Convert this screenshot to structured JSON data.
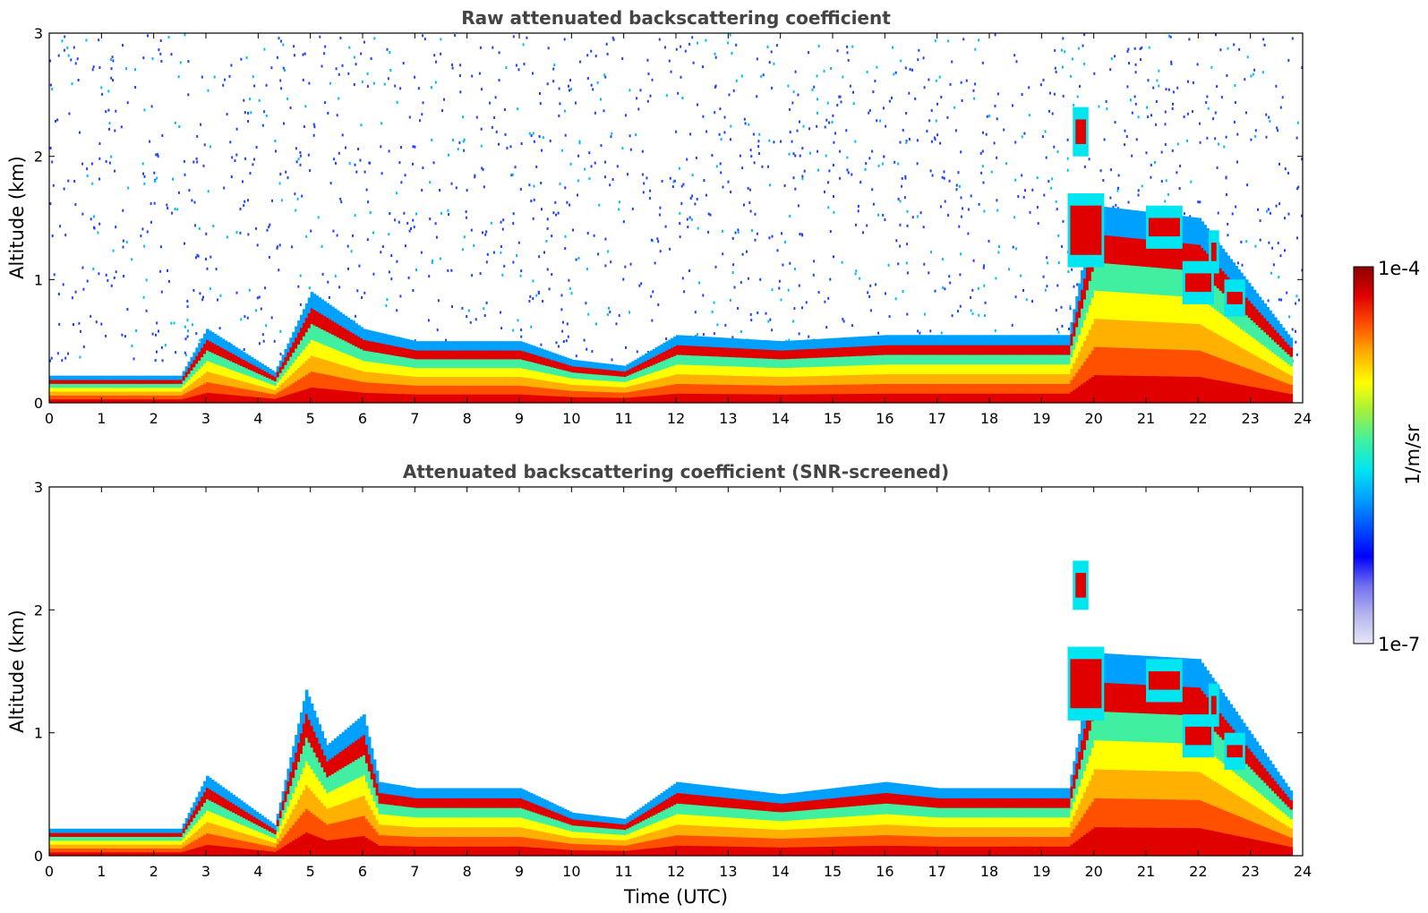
{
  "colors": {
    "axis": "#000000",
    "title": "#444444",
    "colormap": [
      "#e6e6f5",
      "#b4b4ee",
      "#7070ee",
      "#0000ff",
      "#0050ff",
      "#00a0ff",
      "#00e6f0",
      "#40f0a0",
      "#a0f040",
      "#ffff00",
      "#ffb000",
      "#ff5000",
      "#e00000",
      "#8b0000"
    ]
  },
  "colorbar": {
    "max_label": "1e-4",
    "min_label": "1e-7",
    "unit_label": "1/m/sr"
  },
  "chart_data": [
    {
      "type": "heatmap",
      "title": "Raw attenuated backscattering coefficient",
      "xlabel": "",
      "ylabel": "Altitude (km)",
      "xlim": [
        0,
        24
      ],
      "ylim": [
        0,
        3
      ],
      "x_ticks": [
        "0",
        "1",
        "2",
        "3",
        "4",
        "5",
        "6",
        "7",
        "8",
        "9",
        "10",
        "11",
        "12",
        "13",
        "14",
        "15",
        "16",
        "17",
        "18",
        "19",
        "20",
        "21",
        "22",
        "23",
        "24"
      ],
      "y_ticks": [
        "0",
        "1",
        "2",
        "3"
      ],
      "colorscale": "log",
      "clim": [
        1e-07,
        0.0001
      ],
      "layer_top_km": [
        [
          0,
          0.22
        ],
        [
          2.5,
          0.22
        ],
        [
          3,
          0.6
        ],
        [
          4.3,
          0.25
        ],
        [
          5,
          0.9
        ],
        [
          6,
          0.6
        ],
        [
          7,
          0.5
        ],
        [
          9,
          0.5
        ],
        [
          10,
          0.35
        ],
        [
          11,
          0.3
        ],
        [
          12,
          0.55
        ],
        [
          14,
          0.5
        ],
        [
          16,
          0.55
        ],
        [
          17,
          0.55
        ],
        [
          19.5,
          0.55
        ],
        [
          20,
          1.6
        ],
        [
          22,
          1.5
        ],
        [
          23.8,
          0.5
        ]
      ],
      "cloud_patches_km": [
        {
          "x": [
            19.5,
            20.2
          ],
          "y": [
            1.2,
            1.6
          ]
        },
        {
          "x": [
            19.6,
            19.9
          ],
          "y": [
            2.1,
            2.3
          ]
        },
        {
          "x": [
            21.0,
            21.7
          ],
          "y": [
            1.35,
            1.5
          ]
        },
        {
          "x": [
            21.7,
            22.3
          ],
          "y": [
            0.9,
            1.05
          ]
        },
        {
          "x": [
            22.2,
            22.4
          ],
          "y": [
            1.15,
            1.3
          ]
        },
        {
          "x": [
            22.5,
            22.9
          ],
          "y": [
            0.8,
            0.9
          ]
        }
      ],
      "noise_screened": false
    },
    {
      "type": "heatmap",
      "title": "Attenuated backscattering coefficient (SNR-screened)",
      "xlabel": "Time (UTC)",
      "ylabel": "Altitude (km)",
      "xlim": [
        0,
        24
      ],
      "ylim": [
        0,
        3
      ],
      "x_ticks": [
        "0",
        "1",
        "2",
        "3",
        "4",
        "5",
        "6",
        "7",
        "8",
        "9",
        "10",
        "11",
        "12",
        "13",
        "14",
        "15",
        "16",
        "17",
        "18",
        "19",
        "20",
        "21",
        "22",
        "23",
        "24"
      ],
      "y_ticks": [
        "0",
        "1",
        "2",
        "3"
      ],
      "colorscale": "log",
      "clim": [
        1e-07,
        0.0001
      ],
      "layer_top_km": [
        [
          0,
          0.22
        ],
        [
          2.5,
          0.22
        ],
        [
          3,
          0.65
        ],
        [
          4.3,
          0.25
        ],
        [
          4.9,
          1.35
        ],
        [
          5.3,
          0.9
        ],
        [
          6,
          1.15
        ],
        [
          6.3,
          0.6
        ],
        [
          7,
          0.55
        ],
        [
          9,
          0.55
        ],
        [
          10,
          0.35
        ],
        [
          11,
          0.3
        ],
        [
          12,
          0.6
        ],
        [
          14,
          0.5
        ],
        [
          16,
          0.6
        ],
        [
          17,
          0.55
        ],
        [
          19.5,
          0.55
        ],
        [
          20,
          1.65
        ],
        [
          22,
          1.6
        ],
        [
          23.8,
          0.5
        ]
      ],
      "cloud_patches_km": [
        {
          "x": [
            19.5,
            20.2
          ],
          "y": [
            1.2,
            1.6
          ]
        },
        {
          "x": [
            19.6,
            19.9
          ],
          "y": [
            2.1,
            2.3
          ]
        },
        {
          "x": [
            21.0,
            21.7
          ],
          "y": [
            1.35,
            1.5
          ]
        },
        {
          "x": [
            21.7,
            22.3
          ],
          "y": [
            0.9,
            1.05
          ]
        },
        {
          "x": [
            22.2,
            22.4
          ],
          "y": [
            1.15,
            1.3
          ]
        },
        {
          "x": [
            22.5,
            22.9
          ],
          "y": [
            0.8,
            0.9
          ]
        }
      ],
      "noise_screened": true
    }
  ]
}
